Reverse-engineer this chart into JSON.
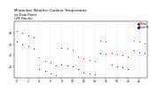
{
  "title": "Milwaukee Weather Outdoor Temperature\nvs Dew Point\n(24 Hours)",
  "title_fontsize": 2.8,
  "background_color": "#ffffff",
  "grid_color": "#bbbbbb",
  "temp_color": "#cc0000",
  "dew_color": "#0000cc",
  "marker_size": 0.8,
  "hours": [
    0,
    1,
    2,
    3,
    4,
    5,
    6,
    7,
    8,
    9,
    10,
    11,
    12,
    13,
    14,
    15,
    16,
    17,
    18,
    19,
    20,
    21,
    22,
    23
  ],
  "temp": [
    52,
    50,
    48,
    46,
    28,
    25,
    23,
    21,
    37,
    36,
    35,
    29,
    27,
    26,
    25,
    43,
    42,
    32,
    31,
    30,
    29,
    43,
    42,
    41
  ],
  "dew": [
    42,
    40,
    38,
    36,
    18,
    16,
    14,
    12,
    22,
    21,
    20,
    18,
    15,
    14,
    13,
    32,
    31,
    22,
    20,
    19,
    18,
    34,
    33,
    32
  ],
  "ylim": [
    10,
    60
  ],
  "yticks": [
    20,
    30,
    40,
    50
  ],
  "xtick_vals": [
    0,
    2,
    4,
    6,
    8,
    10,
    12,
    14,
    16,
    18,
    20,
    22
  ],
  "xtick_labels": [
    "0",
    "2",
    "4",
    "6",
    "8",
    "10",
    "12",
    "14",
    "16",
    "18",
    "20",
    "22"
  ],
  "tick_fontsize": 2.2,
  "legend_labels": [
    "Temp",
    "Dew Pt"
  ],
  "legend_colors": [
    "#cc0000",
    "#0000cc"
  ],
  "legend_fontsize": 2.2,
  "vgrid_positions": [
    0,
    2,
    4,
    6,
    8,
    10,
    12,
    14,
    16,
    18,
    20,
    22
  ]
}
